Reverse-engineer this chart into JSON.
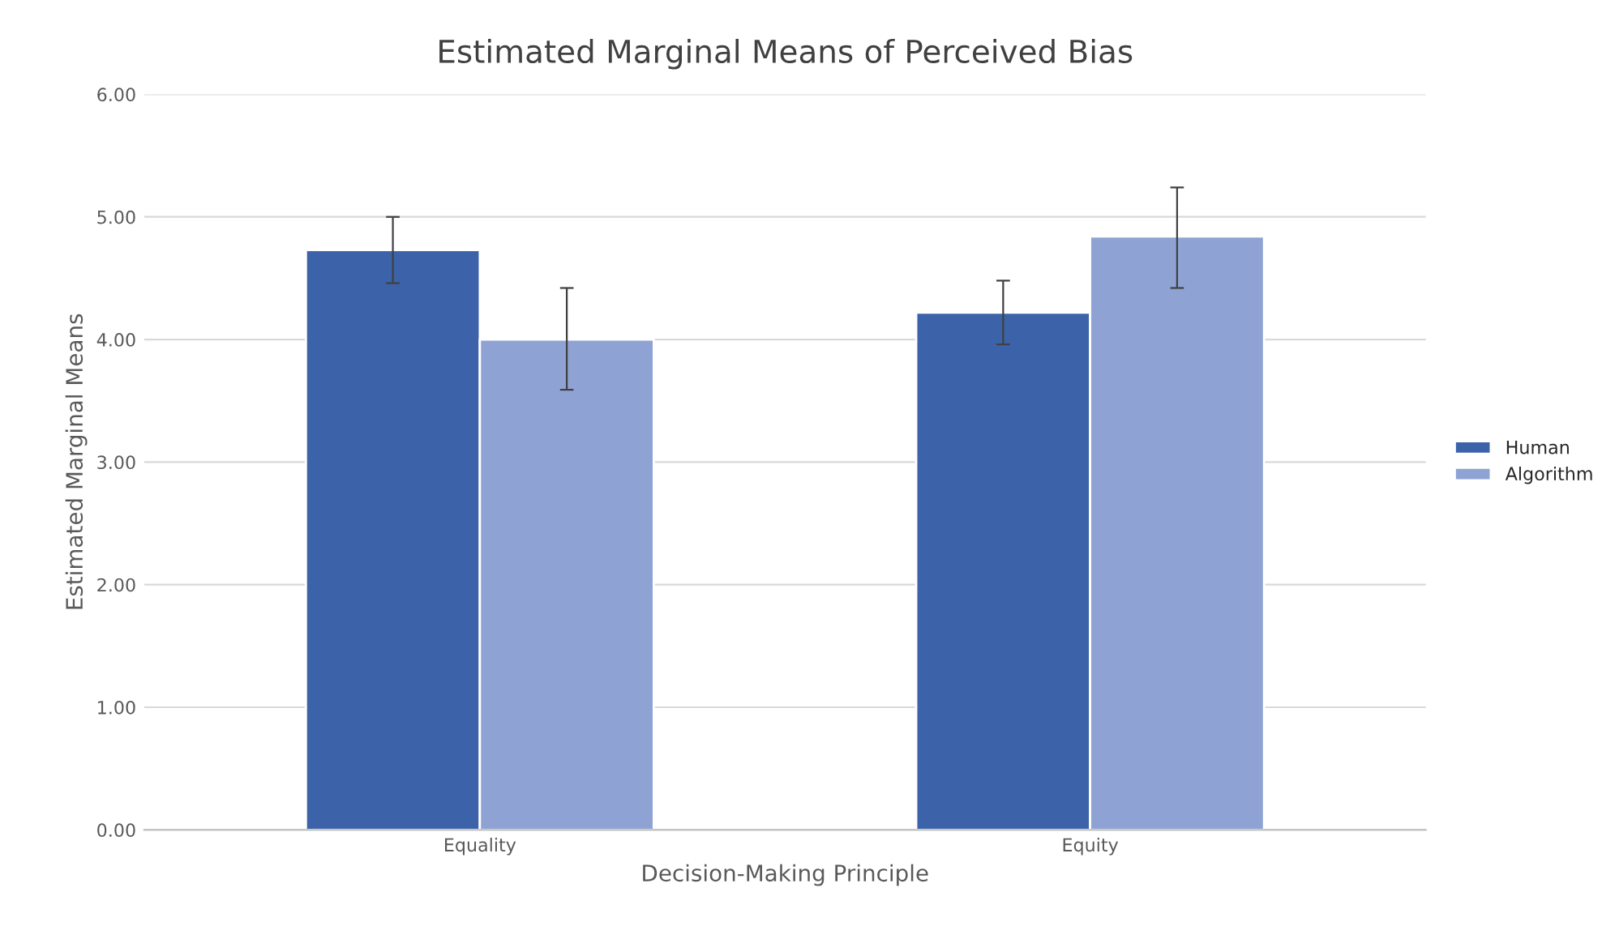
{
  "chart_data": {
    "type": "bar",
    "title": "Estimated Marginal Means of Perceived Bias",
    "xlabel": "Decision-Making Principle",
    "ylabel": "Estimated Marginal Means",
    "categories": [
      "Equality",
      "Equity"
    ],
    "series": [
      {
        "name": "Human",
        "color": "#3c63aa",
        "values": [
          4.73,
          4.22
        ],
        "errors": [
          [
            4.46,
            5.0
          ],
          [
            3.96,
            4.48
          ]
        ]
      },
      {
        "name": "Algorithm",
        "color": "#8ea3d4",
        "values": [
          4.0,
          4.84
        ],
        "errors": [
          [
            3.59,
            4.42
          ],
          [
            4.42,
            5.24
          ]
        ]
      }
    ],
    "ylim": [
      0,
      6
    ],
    "yticks": [
      {
        "value": 0,
        "label": "0.00"
      },
      {
        "value": 1,
        "label": "1.00"
      },
      {
        "value": 2,
        "label": "2.00"
      },
      {
        "value": 3,
        "label": "3.00"
      },
      {
        "value": 4,
        "label": "4.00"
      },
      {
        "value": 5,
        "label": "5.00"
      },
      {
        "value": 6,
        "label": "6.00"
      }
    ],
    "grid": "y",
    "legend": "right"
  }
}
